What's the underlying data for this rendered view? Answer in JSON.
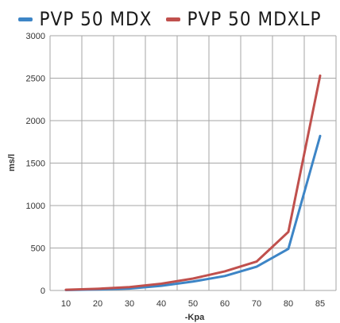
{
  "chart_data": {
    "type": "line",
    "categories": [
      "10",
      "20",
      "30",
      "40",
      "50",
      "60",
      "70",
      "80",
      "85"
    ],
    "series": [
      {
        "name": "PVP 50 MDX",
        "color": "#3d85c6",
        "values": [
          5,
          12,
          22,
          55,
          105,
          170,
          280,
          490,
          1820
        ]
      },
      {
        "name": "PVP 50 MDXLP",
        "color": "#c0504d",
        "values": [
          8,
          20,
          40,
          80,
          140,
          225,
          340,
          690,
          2530
        ]
      }
    ],
    "xlabel": "-Kpa",
    "ylabel": "ms/l",
    "ylim": [
      0,
      3000
    ],
    "yticks": [
      0,
      500,
      1000,
      1500,
      2000,
      2500,
      3000
    ],
    "grid": true,
    "legend_position": "top"
  }
}
